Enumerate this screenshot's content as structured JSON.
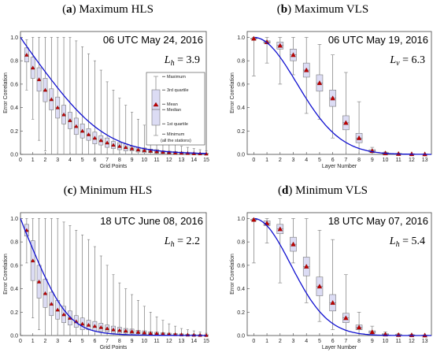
{
  "chart_data": [
    {
      "type": "box",
      "panel": "(a)",
      "title": "Maximum HLS",
      "annotation": "06 UTC May 24, 2016",
      "length_scale": {
        "symbol": "L",
        "sub": "h",
        "value": "= 3.9"
      },
      "xlabel": "Grid Points",
      "ylabel": "Error Correlation",
      "xlim": [
        0,
        15
      ],
      "ylim": [
        0,
        1.05
      ],
      "xticks": [
        "0",
        "1",
        "2",
        "3",
        "4",
        "5",
        "6",
        "7",
        "8",
        "9",
        "10",
        "11",
        "12",
        "13",
        "14",
        "15"
      ],
      "yticks": [
        "0.0",
        "0.2",
        "0.4",
        "0.6",
        "0.8",
        "1.0"
      ],
      "step": 0.5,
      "fit_scale": 3.9,
      "fit_type": "gaussian_grid",
      "mean": [
        0.85,
        0.74,
        0.64,
        0.55,
        0.47,
        0.4,
        0.34,
        0.29,
        0.24,
        0.2,
        0.17,
        0.14,
        0.12,
        0.1,
        0.08,
        0.07,
        0.06,
        0.05,
        0.04,
        0.035,
        0.03,
        0.025,
        0.02,
        0.017,
        0.014,
        0.012,
        0.01,
        0.008,
        0.007,
        0.005
      ],
      "box_half_iqr": [
        0.06,
        0.09,
        0.1,
        0.1,
        0.09,
        0.09,
        0.08,
        0.07,
        0.07,
        0.06,
        0.05,
        0.05,
        0.04,
        0.04,
        0.03,
        0.03,
        0.03,
        0.02,
        0.02,
        0.02,
        0.015,
        0.015,
        0.01,
        0.01,
        0.01,
        0.008,
        0.006,
        0.005,
        0.004,
        0.003
      ],
      "whisker_max": [
        0.98,
        1.0,
        1.0,
        1.0,
        1.0,
        1.0,
        1.0,
        1.0,
        0.97,
        0.92,
        0.86,
        0.8,
        0.72,
        0.62,
        0.55,
        0.48,
        0.42,
        0.36,
        0.3,
        0.25,
        0.21,
        0.17,
        0.14,
        0.11,
        0.09,
        0.07,
        0.06,
        0.05,
        0.04,
        0.03
      ],
      "whisker_min": [
        0.55,
        0.3,
        0.12,
        0.03,
        0.0,
        0.0,
        0.0,
        0.0,
        0.0,
        0.0,
        0.0,
        0.0,
        0.0,
        0.0,
        0.0,
        0.0,
        0.0,
        0.0,
        0.0,
        0.0,
        0.0,
        0.0,
        0.0,
        0.0,
        0.0,
        0.0,
        0.0,
        0.0,
        0.0,
        0.0
      ],
      "legend": {
        "maximum": "Maximum",
        "q3": "3rd quartile",
        "mean": "Mean",
        "median": "Median",
        "q1": "1st quartile",
        "minimum": "Minimum",
        "note": "(all the stations)"
      }
    },
    {
      "type": "box",
      "panel": "(b)",
      "title": "Maximum VLS",
      "annotation": "06 UTC May 19, 2016",
      "length_scale": {
        "symbol": "L",
        "sub": "v",
        "value": "= 6.3"
      },
      "xlabel": "Layer Number",
      "ylabel": "Error Correlation",
      "xlim": [
        -0.5,
        13.5
      ],
      "ylim": [
        0,
        1.05
      ],
      "xticks": [
        "0",
        "1",
        "2",
        "3",
        "4",
        "5",
        "6",
        "7",
        "8",
        "9",
        "10",
        "11",
        "12",
        "13"
      ],
      "yticks": [
        "0.0",
        "0.2",
        "0.4",
        "0.6",
        "0.8",
        "1.0"
      ],
      "step": 1,
      "fit_scale": 6.3,
      "fit_type": "gaussian_layer",
      "mean": [
        0.99,
        0.96,
        0.93,
        0.85,
        0.72,
        0.61,
        0.48,
        0.27,
        0.14,
        0.03,
        0.01,
        0.005,
        0.003,
        0.002
      ],
      "box_half_iqr": [
        0.0,
        0.01,
        0.03,
        0.05,
        0.06,
        0.07,
        0.07,
        0.06,
        0.04,
        0.01,
        0.005,
        0.003,
        0.002,
        0.001
      ],
      "whisker_max": [
        1.0,
        1.0,
        1.0,
        1.0,
        1.0,
        0.94,
        0.85,
        0.7,
        0.45,
        0.06,
        0.02,
        0.01,
        0.005,
        0.003
      ],
      "whisker_min": [
        0.67,
        0.78,
        0.6,
        0.68,
        0.35,
        0.3,
        0.14,
        0.0,
        0.0,
        0.0,
        0.0,
        0.0,
        0.0,
        0.0
      ]
    },
    {
      "type": "box",
      "panel": "(c)",
      "title": "Minimum HLS",
      "annotation": "18 UTC June 08, 2016",
      "length_scale": {
        "symbol": "L",
        "sub": "h",
        "value": "= 2.2"
      },
      "xlabel": "Grid Points",
      "ylabel": "Error Correlation",
      "xlim": [
        0,
        15
      ],
      "ylim": [
        0,
        1.05
      ],
      "xticks": [
        "0",
        "1",
        "2",
        "3",
        "4",
        "5",
        "6",
        "7",
        "8",
        "9",
        "10",
        "11",
        "12",
        "13",
        "14",
        "15"
      ],
      "yticks": [
        "0.0",
        "0.2",
        "0.4",
        "0.6",
        "0.8",
        "1.0"
      ],
      "step": 0.5,
      "fit_scale": 2.2,
      "fit_type": "gaussian_grid",
      "mean": [
        0.9,
        0.64,
        0.46,
        0.36,
        0.27,
        0.22,
        0.18,
        0.15,
        0.12,
        0.1,
        0.09,
        0.08,
        0.07,
        0.06,
        0.05,
        0.045,
        0.04,
        0.035,
        0.03,
        0.025,
        0.02,
        0.018,
        0.015,
        0.012,
        0.01,
        0.008,
        0.006,
        0.005,
        0.004,
        0.003
      ],
      "box_half_iqr": [
        0.05,
        0.17,
        0.14,
        0.12,
        0.1,
        0.08,
        0.07,
        0.06,
        0.05,
        0.05,
        0.04,
        0.04,
        0.035,
        0.03,
        0.03,
        0.025,
        0.02,
        0.02,
        0.015,
        0.015,
        0.012,
        0.01,
        0.01,
        0.008,
        0.007,
        0.006,
        0.005,
        0.004,
        0.003,
        0.003
      ],
      "whisker_max": [
        1.0,
        1.0,
        1.0,
        1.0,
        1.0,
        1.0,
        0.97,
        0.94,
        0.9,
        0.86,
        0.82,
        0.76,
        0.68,
        0.6,
        0.52,
        0.45,
        0.4,
        0.35,
        0.3,
        0.25,
        0.2,
        0.16,
        0.13,
        0.1,
        0.08,
        0.06,
        0.05,
        0.04,
        0.03,
        0.02
      ],
      "whisker_min": [
        0.62,
        0.15,
        0.05,
        0.0,
        0.0,
        0.0,
        0.0,
        0.0,
        0.0,
        0.0,
        0.0,
        0.0,
        0.0,
        0.0,
        0.0,
        0.0,
        0.0,
        0.0,
        0.0,
        0.0,
        0.0,
        0.0,
        0.0,
        0.0,
        0.0,
        0.0,
        0.0,
        0.0,
        0.0,
        0.0
      ]
    },
    {
      "type": "box",
      "panel": "(d)",
      "title": "Minimum VLS",
      "annotation": "18 UTC May 07, 2016",
      "length_scale": {
        "symbol": "L",
        "sub": "h",
        "value": "= 5.4"
      },
      "xlabel": "Layer Number",
      "ylabel": "Error Correlation",
      "xlim": [
        -0.5,
        13.5
      ],
      "ylim": [
        0,
        1.05
      ],
      "xticks": [
        "0",
        "1",
        "2",
        "3",
        "4",
        "5",
        "6",
        "7",
        "8",
        "9",
        "10",
        "11",
        "12",
        "13"
      ],
      "yticks": [
        "0.0",
        "0.2",
        "0.4",
        "0.6",
        "0.8",
        "1.0"
      ],
      "step": 1,
      "fit_scale": 5.4,
      "fit_type": "gaussian_layer",
      "mean": [
        0.99,
        0.96,
        0.91,
        0.78,
        0.59,
        0.42,
        0.28,
        0.15,
        0.07,
        0.03,
        0.01,
        0.006,
        0.004,
        0.002
      ],
      "box_half_iqr": [
        0.0,
        0.02,
        0.04,
        0.06,
        0.08,
        0.08,
        0.07,
        0.04,
        0.02,
        0.01,
        0.005,
        0.003,
        0.002,
        0.001
      ],
      "whisker_max": [
        1.0,
        1.0,
        1.0,
        1.0,
        1.0,
        0.9,
        0.82,
        0.52,
        0.2,
        0.08,
        0.03,
        0.015,
        0.01,
        0.005
      ],
      "whisker_min": [
        0.62,
        0.79,
        0.45,
        0.62,
        0.28,
        0.12,
        0.05,
        0.0,
        0.0,
        0.0,
        0.0,
        0.0,
        0.0,
        0.0
      ]
    }
  ]
}
